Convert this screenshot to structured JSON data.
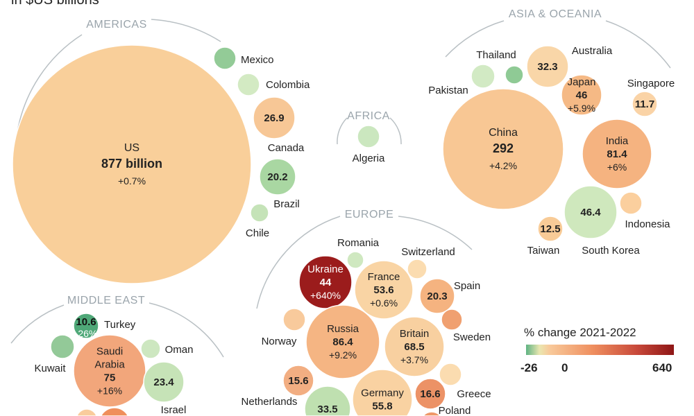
{
  "chart_data": {
    "type": "bubble",
    "subtitle": "in $US billions",
    "regions": [
      "AMERICAS",
      "AFRICA",
      "ASIA & OCEANIA",
      "EUROPE",
      "MIDDLE EAST"
    ],
    "legend": {
      "title": "% change 2021-2022",
      "min_label": "-26",
      "zero_label": "0",
      "max_label": "640",
      "min": -26,
      "max": 640,
      "colors": [
        "#5fb383",
        "#e9e6b0",
        "#f8c99a",
        "#ef8f5f",
        "#8e1616"
      ]
    },
    "countries": [
      {
        "id": "us",
        "region": "AMERICAS",
        "name": "US",
        "value": "877 billion",
        "change": "+0.7%",
        "color": "#f9cf9a"
      },
      {
        "id": "mexico",
        "region": "AMERICAS",
        "name": "Mexico",
        "color": "#93cb97"
      },
      {
        "id": "colombia",
        "region": "AMERICAS",
        "name": "Colombia",
        "color": "#d3eac3"
      },
      {
        "id": "canada",
        "region": "AMERICAS",
        "name": "Canada",
        "value": "26.9",
        "color": "#f7c796"
      },
      {
        "id": "brazil",
        "region": "AMERICAS",
        "name": "Brazil",
        "value": "20.2",
        "color": "#a9d7a2"
      },
      {
        "id": "chile",
        "region": "AMERICAS",
        "name": "Chile",
        "color": "#c5e3b8"
      },
      {
        "id": "algeria",
        "region": "AFRICA",
        "name": "Algeria",
        "color": "#cbe7bf"
      },
      {
        "id": "china",
        "region": "ASIA & OCEANIA",
        "name": "China",
        "value": "292",
        "change": "+4.2%",
        "color": "#f8c794"
      },
      {
        "id": "pakistan",
        "region": "ASIA & OCEANIA",
        "name": "Pakistan",
        "color": "#d2eac4"
      },
      {
        "id": "thailand",
        "region": "ASIA & OCEANIA",
        "name": "Thailand",
        "color": "#8fca95"
      },
      {
        "id": "australia",
        "region": "ASIA & OCEANIA",
        "name": "Australia",
        "value": "32.3",
        "color": "#f9d6a8"
      },
      {
        "id": "japan",
        "region": "ASIA & OCEANIA",
        "name": "Japan",
        "value": "46",
        "change": "+5.9%",
        "color": "#f5b985"
      },
      {
        "id": "singapore",
        "region": "ASIA & OCEANIA",
        "name": "Singapore",
        "value": "11.7",
        "color": "#fad3a6"
      },
      {
        "id": "india",
        "region": "ASIA & OCEANIA",
        "name": "India",
        "value": "81.4",
        "change": "+6%",
        "color": "#f5b380"
      },
      {
        "id": "southkorea",
        "region": "ASIA & OCEANIA",
        "name": "South Korea",
        "value": "46.4",
        "color": "#cfe8bd"
      },
      {
        "id": "indonesia",
        "region": "ASIA & OCEANIA",
        "name": "Indonesia",
        "color": "#fbcf9e"
      },
      {
        "id": "taiwan",
        "region": "ASIA & OCEANIA",
        "name": "Taiwan",
        "value": "12.5",
        "color": "#f8cb97"
      },
      {
        "id": "romania",
        "region": "EUROPE",
        "name": "Romania",
        "color": "#cfe8c0"
      },
      {
        "id": "switzerland",
        "region": "EUROPE",
        "name": "Switzerland",
        "color": "#fbdcb0"
      },
      {
        "id": "ukraine",
        "region": "EUROPE",
        "name": "Ukraine",
        "value": "44",
        "change": "+640%",
        "color": "#9b1c1c"
      },
      {
        "id": "france",
        "region": "EUROPE",
        "name": "France",
        "value": "53.6",
        "change": "+0.6%",
        "color": "#f9d4a4"
      },
      {
        "id": "spain",
        "region": "EUROPE",
        "name": "Spain",
        "value": "20.3",
        "color": "#f5b380"
      },
      {
        "id": "norway",
        "region": "EUROPE",
        "name": "Norway",
        "color": "#f8ca9c"
      },
      {
        "id": "russia",
        "region": "EUROPE",
        "name": "Russia",
        "value": "86.4",
        "change": "+9.2%",
        "color": "#f5b583"
      },
      {
        "id": "britain",
        "region": "EUROPE",
        "name": "Britain",
        "value": "68.5",
        "change": "+3.7%",
        "color": "#f8d0a0"
      },
      {
        "id": "sweden",
        "region": "EUROPE",
        "name": "Sweden",
        "color": "#f0a070"
      },
      {
        "id": "netherlands",
        "region": "EUROPE",
        "name": "Netherlands",
        "value": "15.6",
        "color": "#f2ae82"
      },
      {
        "id": "eu335",
        "region": "EUROPE",
        "value": "33.5",
        "color": "#bfe0b0"
      },
      {
        "id": "germany",
        "region": "EUROPE",
        "name": "Germany",
        "value": "55.8",
        "color": "#f9d2a2"
      },
      {
        "id": "greece",
        "region": "EUROPE",
        "name": "Greece",
        "color": "#fbdcb0"
      },
      {
        "id": "eu166",
        "region": "EUROPE",
        "value": "16.6",
        "color": "#ec9266"
      },
      {
        "id": "poland",
        "region": "EUROPE",
        "name": "Poland",
        "color": "#ef9868"
      },
      {
        "id": "turkey",
        "region": "MIDDLE EAST",
        "name": "Turkey",
        "value": "10.6",
        "change": "-26%",
        "color": "#4fa878"
      },
      {
        "id": "kuwait",
        "region": "MIDDLE EAST",
        "name": "Kuwait",
        "color": "#93c998"
      },
      {
        "id": "saudi",
        "region": "MIDDLE EAST",
        "name": "Saudi Arabia",
        "value": "75",
        "change": "+16%",
        "color": "#f2a67b"
      },
      {
        "id": "oman",
        "region": "MIDDLE EAST",
        "name": "Oman",
        "color": "#cde7c0"
      },
      {
        "id": "israel",
        "region": "MIDDLE EAST",
        "name": "Israel",
        "value": "23.4",
        "color": "#c6e3b7"
      },
      {
        "id": "me1",
        "region": "MIDDLE EAST",
        "color": "#f9cc9c"
      },
      {
        "id": "me2",
        "region": "MIDDLE EAST",
        "color": "#ef8f5c"
      }
    ]
  }
}
